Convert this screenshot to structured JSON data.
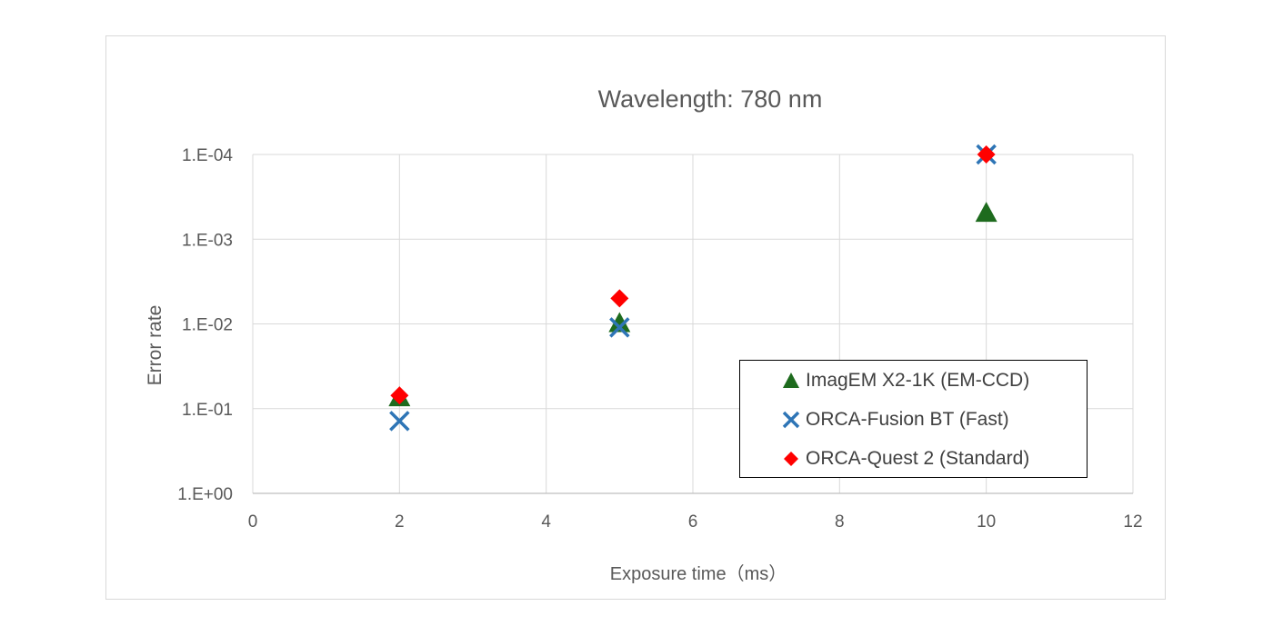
{
  "chart_data": {
    "type": "scatter",
    "title": "Wavelength: 780 nm",
    "xlabel": "Exposure time（ms）",
    "ylabel": "Error rate",
    "xlim": [
      0,
      12
    ],
    "x_ticks": [
      0,
      2,
      4,
      6,
      8,
      10,
      12
    ],
    "y_scale": "log",
    "y_axis_reversed": true,
    "y_ticks": [
      1,
      0.1,
      0.01,
      0.001,
      0.0001
    ],
    "y_tick_labels": [
      "1.E+00",
      "1.E-01",
      "1.E-02",
      "1.E-03",
      "1.E-04"
    ],
    "grid": true,
    "legend_position": "bottom-right",
    "series": [
      {
        "name": "ImagEM X2-1K (EM-CCD)",
        "marker": "triangle",
        "color": "#1e6b1e",
        "points": [
          [
            2,
            0.075
          ],
          [
            5,
            0.01
          ],
          [
            10,
            0.0005
          ]
        ]
      },
      {
        "name": "ORCA-Fusion BT (Fast)",
        "marker": "x",
        "color": "#2e75b6",
        "points": [
          [
            2,
            0.14
          ],
          [
            5,
            0.011
          ],
          [
            10,
            0.0001
          ]
        ]
      },
      {
        "name": "ORCA-Quest 2 (Standard)",
        "marker": "diamond",
        "color": "#ff0000",
        "points": [
          [
            2,
            0.07
          ],
          [
            5,
            0.005
          ],
          [
            10,
            0.0001
          ]
        ]
      }
    ]
  }
}
